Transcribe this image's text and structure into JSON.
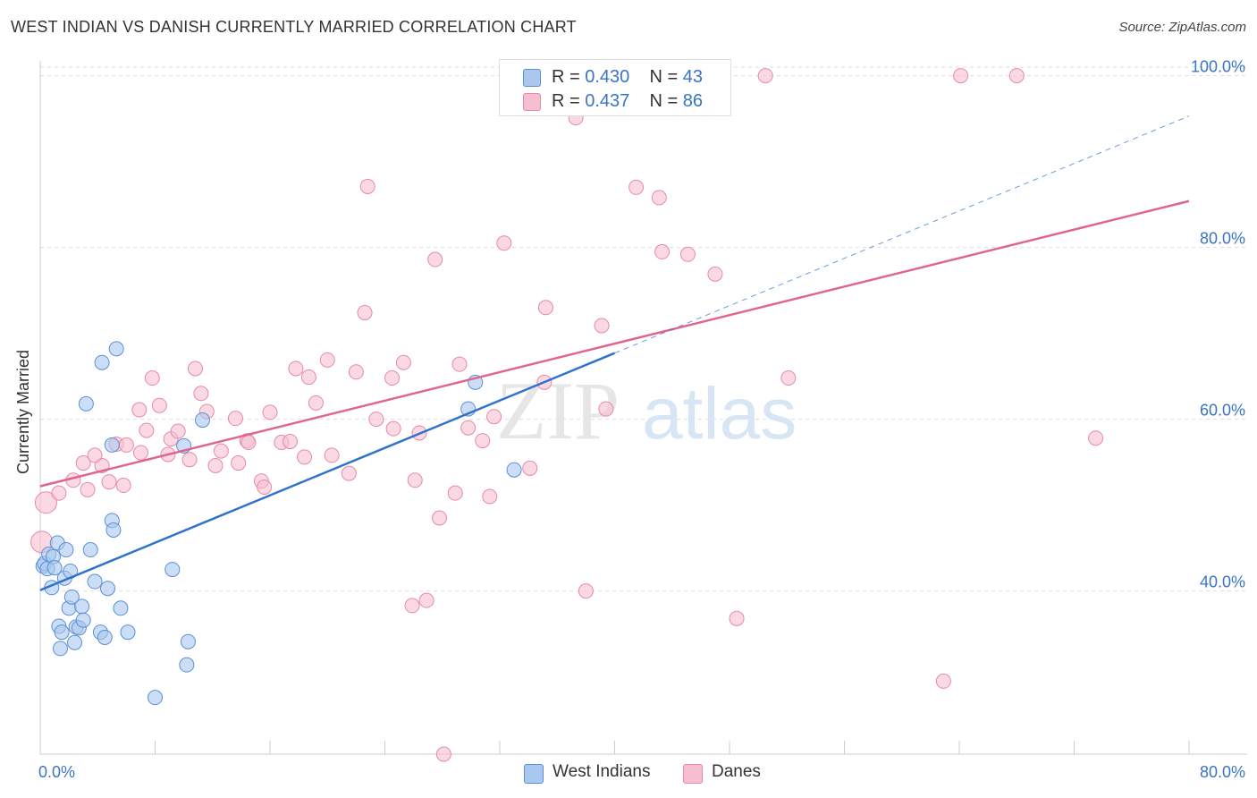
{
  "title": "WEST INDIAN VS DANISH CURRENTLY MARRIED CORRELATION CHART",
  "source": "Source: ZipAtlas.com",
  "watermark": {
    "part1": "ZIP",
    "part2": "atlas"
  },
  "legend": {
    "rows": [
      {
        "r_label": "R =",
        "r_value": "0.430",
        "n_label": "N =",
        "n_value": "43"
      },
      {
        "r_label": "R =",
        "r_value": "0.437",
        "n_label": "N =",
        "n_value": "86"
      }
    ]
  },
  "bottom_legend": {
    "west_indians": "West Indians",
    "danes": "Danes"
  },
  "colors": {
    "west_indians_fill": "#aac8ef",
    "west_indians_stroke": "#5b8fd6",
    "west_indians_line": "#2f72cc",
    "danes_fill": "#f6bfd0",
    "danes_stroke": "#e58aa8",
    "danes_line": "#e0648e",
    "axis_text": "#3a74c5",
    "grid": "#dddddd"
  },
  "chart_data": {
    "type": "scatter",
    "title": "WEST INDIAN VS DANISH CURRENTLY MARRIED CORRELATION CHART",
    "xlabel": "",
    "ylabel": "Currently Married",
    "xlim": [
      0,
      80
    ],
    "ylim": [
      21,
      101
    ],
    "x_tick_labels": [
      "0.0%",
      "80.0%"
    ],
    "y_ticks": [
      40,
      60,
      80,
      100
    ],
    "y_tick_labels": [
      "40.0%",
      "60.0%",
      "80.0%",
      "100.0%"
    ],
    "grid": true,
    "legend_position": "top-center",
    "series": [
      {
        "name": "West Indians",
        "r": 0.43,
        "n": 43,
        "trend": {
          "x": [
            0,
            40
          ],
          "y": [
            40.1,
            67.7
          ]
        },
        "trend_extension": {
          "x": [
            40,
            80
          ],
          "y": [
            67.7,
            95.3
          ]
        },
        "points": [
          [
            0.2,
            42.9
          ],
          [
            0.3,
            43.2
          ],
          [
            0.5,
            42.6
          ],
          [
            0.6,
            44.3
          ],
          [
            0.8,
            40.4
          ],
          [
            0.9,
            44.0
          ],
          [
            1.0,
            42.7
          ],
          [
            1.2,
            45.6
          ],
          [
            1.3,
            35.9
          ],
          [
            1.4,
            33.3
          ],
          [
            1.5,
            35.2
          ],
          [
            1.7,
            41.5
          ],
          [
            1.8,
            44.8
          ],
          [
            2.0,
            38.0
          ],
          [
            2.1,
            42.3
          ],
          [
            2.2,
            39.3
          ],
          [
            2.4,
            34.0
          ],
          [
            2.5,
            35.8
          ],
          [
            2.7,
            35.7
          ],
          [
            2.9,
            38.2
          ],
          [
            3.0,
            36.6
          ],
          [
            3.2,
            61.8
          ],
          [
            3.5,
            44.8
          ],
          [
            3.8,
            41.1
          ],
          [
            4.2,
            35.2
          ],
          [
            4.3,
            66.6
          ],
          [
            4.5,
            34.6
          ],
          [
            4.7,
            40.3
          ],
          [
            5.0,
            57.0
          ],
          [
            5.0,
            48.2
          ],
          [
            5.1,
            47.1
          ],
          [
            5.3,
            68.2
          ],
          [
            5.6,
            38.0
          ],
          [
            6.1,
            35.2
          ],
          [
            8.0,
            27.6
          ],
          [
            9.2,
            42.5
          ],
          [
            10.0,
            56.9
          ],
          [
            10.2,
            31.4
          ],
          [
            10.3,
            34.1
          ],
          [
            11.3,
            59.9
          ],
          [
            29.8,
            61.2
          ],
          [
            30.3,
            64.3
          ],
          [
            33.0,
            54.1
          ]
        ]
      },
      {
        "name": "Danes",
        "r": 0.437,
        "n": 86,
        "trend": {
          "x": [
            0,
            80
          ],
          "y": [
            52.2,
            85.4
          ]
        },
        "points": [
          [
            0.4,
            50.3
          ],
          [
            1.3,
            51.4
          ],
          [
            2.3,
            52.9
          ],
          [
            3.3,
            51.8
          ],
          [
            4.3,
            54.6
          ],
          [
            3.0,
            54.9
          ],
          [
            4.8,
            52.7
          ],
          [
            3.8,
            55.8
          ],
          [
            5.3,
            57.1
          ],
          [
            5.8,
            52.3
          ],
          [
            6.0,
            57.0
          ],
          [
            7.0,
            56.1
          ],
          [
            6.9,
            61.1
          ],
          [
            7.4,
            58.7
          ],
          [
            7.8,
            64.8
          ],
          [
            8.3,
            61.6
          ],
          [
            8.9,
            55.9
          ],
          [
            9.1,
            57.7
          ],
          [
            9.6,
            58.6
          ],
          [
            10.4,
            55.3
          ],
          [
            10.8,
            65.9
          ],
          [
            11.2,
            63.0
          ],
          [
            11.6,
            60.9
          ],
          [
            12.2,
            54.6
          ],
          [
            12.6,
            56.3
          ],
          [
            13.6,
            60.1
          ],
          [
            13.8,
            54.9
          ],
          [
            14.4,
            57.5
          ],
          [
            14.5,
            57.3
          ],
          [
            15.4,
            52.8
          ],
          [
            15.6,
            52.1
          ],
          [
            16.0,
            60.8
          ],
          [
            16.8,
            57.3
          ],
          [
            17.4,
            57.4
          ],
          [
            17.8,
            65.9
          ],
          [
            18.4,
            55.6
          ],
          [
            18.7,
            64.9
          ],
          [
            19.2,
            61.9
          ],
          [
            20.0,
            66.9
          ],
          [
            20.3,
            55.8
          ],
          [
            21.5,
            53.7
          ],
          [
            22.0,
            65.5
          ],
          [
            22.6,
            72.4
          ],
          [
            22.8,
            87.1
          ],
          [
            23.4,
            60.0
          ],
          [
            24.5,
            64.8
          ],
          [
            24.6,
            58.9
          ],
          [
            25.3,
            66.6
          ],
          [
            25.9,
            38.3
          ],
          [
            26.1,
            52.9
          ],
          [
            26.4,
            58.4
          ],
          [
            26.9,
            38.9
          ],
          [
            27.5,
            78.6
          ],
          [
            27.8,
            48.5
          ],
          [
            28.1,
            21.0
          ],
          [
            28.9,
            51.4
          ],
          [
            29.2,
            66.4
          ],
          [
            29.8,
            59.0
          ],
          [
            30.8,
            57.5
          ],
          [
            31.3,
            51.0
          ],
          [
            31.6,
            60.3
          ],
          [
            32.3,
            80.5
          ],
          [
            34.1,
            54.3
          ],
          [
            35.1,
            64.3
          ],
          [
            35.2,
            73.0
          ],
          [
            37.3,
            95.1
          ],
          [
            38.0,
            40.0
          ],
          [
            38.5,
            100.0
          ],
          [
            39.1,
            70.9
          ],
          [
            39.4,
            61.2
          ],
          [
            40.1,
            100.0
          ],
          [
            41.5,
            87.0
          ],
          [
            43.1,
            85.8
          ],
          [
            43.3,
            79.5
          ],
          [
            44.7,
            100.0
          ],
          [
            45.1,
            79.2
          ],
          [
            47.0,
            76.9
          ],
          [
            47.2,
            100.0
          ],
          [
            48.5,
            36.8
          ],
          [
            50.5,
            100.0
          ],
          [
            52.1,
            64.8
          ],
          [
            64.1,
            100.0
          ],
          [
            68.0,
            100.0
          ],
          [
            62.9,
            29.5
          ],
          [
            73.5,
            57.8
          ],
          [
            0.1,
            45.7
          ]
        ]
      }
    ]
  }
}
